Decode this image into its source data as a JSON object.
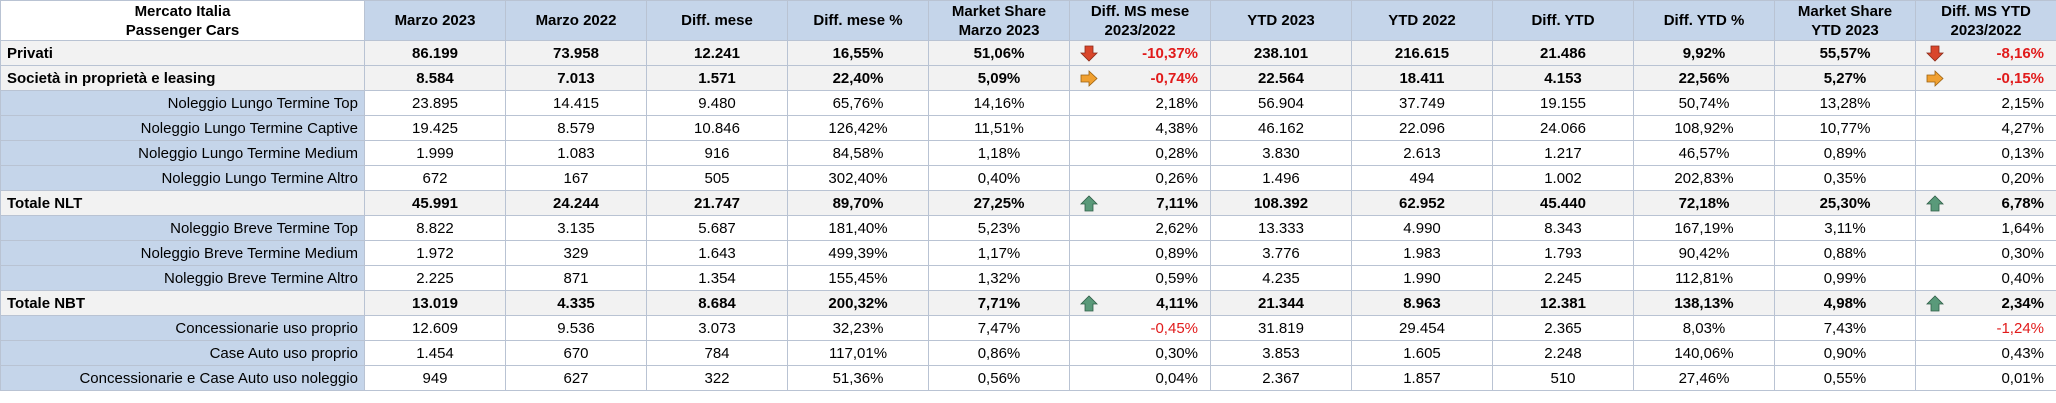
{
  "header": {
    "corner": [
      "Mercato Italia",
      "Passenger Cars"
    ],
    "columns": [
      [
        "Marzo 2023"
      ],
      [
        "Marzo 2022"
      ],
      [
        "Diff. mese"
      ],
      [
        "Diff. mese %"
      ],
      [
        "Market Share",
        "Marzo 2023"
      ],
      [
        "Diff. MS mese",
        "2023/2022"
      ],
      [
        "YTD 2023"
      ],
      [
        "YTD 2022"
      ],
      [
        "Diff. YTD"
      ],
      [
        "Diff. YTD %"
      ],
      [
        "Market Share",
        "YTD 2023"
      ],
      [
        "Diff. MS YTD",
        "2023/2022"
      ]
    ]
  },
  "colors": {
    "header_bg": "#c5d5ea",
    "negative": "#e11b1b",
    "arrow_down": "#d9462b",
    "arrow_right": "#f0a030",
    "arrow_up": "#5a9a7a"
  },
  "rows": [
    {
      "type": "bold",
      "label": "Privati",
      "values": [
        "86.199",
        "73.958",
        "12.241",
        "16,55%",
        "51,06%",
        "-10,37%",
        "238.101",
        "216.615",
        "21.486",
        "9,92%",
        "55,57%",
        "-8,16%"
      ],
      "arrow_ms": "arrow-down-icon",
      "arrow_ytd": "arrow-down-icon",
      "neg_ms": true,
      "neg_ytd": true
    },
    {
      "type": "bold",
      "label": "Società in proprietà e leasing",
      "values": [
        "8.584",
        "7.013",
        "1.571",
        "22,40%",
        "5,09%",
        "-0,74%",
        "22.564",
        "18.411",
        "4.153",
        "22,56%",
        "5,27%",
        "-0,15%"
      ],
      "arrow_ms": "arrow-right-icon",
      "arrow_ytd": "arrow-right-icon",
      "neg_ms": true,
      "neg_ytd": true
    },
    {
      "type": "sub",
      "label": "Noleggio Lungo Termine Top",
      "values": [
        "23.895",
        "14.415",
        "9.480",
        "65,76%",
        "14,16%",
        "2,18%",
        "56.904",
        "37.749",
        "19.155",
        "50,74%",
        "13,28%",
        "2,15%"
      ],
      "arrow_ms": "",
      "arrow_ytd": "",
      "neg_ms": false,
      "neg_ytd": false
    },
    {
      "type": "sub",
      "label": "Noleggio Lungo Termine Captive",
      "values": [
        "19.425",
        "8.579",
        "10.846",
        "126,42%",
        "11,51%",
        "4,38%",
        "46.162",
        "22.096",
        "24.066",
        "108,92%",
        "10,77%",
        "4,27%"
      ],
      "arrow_ms": "",
      "arrow_ytd": "",
      "neg_ms": false,
      "neg_ytd": false
    },
    {
      "type": "sub",
      "label": "Noleggio Lungo Termine Medium",
      "values": [
        "1.999",
        "1.083",
        "916",
        "84,58%",
        "1,18%",
        "0,28%",
        "3.830",
        "2.613",
        "1.217",
        "46,57%",
        "0,89%",
        "0,13%"
      ],
      "arrow_ms": "",
      "arrow_ytd": "",
      "neg_ms": false,
      "neg_ytd": false
    },
    {
      "type": "sub",
      "label": "Noleggio Lungo Termine Altro",
      "values": [
        "672",
        "167",
        "505",
        "302,40%",
        "0,40%",
        "0,26%",
        "1.496",
        "494",
        "1.002",
        "202,83%",
        "0,35%",
        "0,20%"
      ],
      "arrow_ms": "",
      "arrow_ytd": "",
      "neg_ms": false,
      "neg_ytd": false
    },
    {
      "type": "bold",
      "label": "Totale NLT",
      "values": [
        "45.991",
        "24.244",
        "21.747",
        "89,70%",
        "27,25%",
        "7,11%",
        "108.392",
        "62.952",
        "45.440",
        "72,18%",
        "25,30%",
        "6,78%"
      ],
      "arrow_ms": "arrow-up-icon",
      "arrow_ytd": "arrow-up-icon",
      "neg_ms": false,
      "neg_ytd": false
    },
    {
      "type": "sub",
      "label": "Noleggio Breve Termine Top",
      "values": [
        "8.822",
        "3.135",
        "5.687",
        "181,40%",
        "5,23%",
        "2,62%",
        "13.333",
        "4.990",
        "8.343",
        "167,19%",
        "3,11%",
        "1,64%"
      ],
      "arrow_ms": "",
      "arrow_ytd": "",
      "neg_ms": false,
      "neg_ytd": false
    },
    {
      "type": "sub",
      "label": "Noleggio Breve Termine Medium",
      "values": [
        "1.972",
        "329",
        "1.643",
        "499,39%",
        "1,17%",
        "0,89%",
        "3.776",
        "1.983",
        "1.793",
        "90,42%",
        "0,88%",
        "0,30%"
      ],
      "arrow_ms": "",
      "arrow_ytd": "",
      "neg_ms": false,
      "neg_ytd": false
    },
    {
      "type": "sub",
      "label": "Noleggio Breve Termine Altro",
      "values": [
        "2.225",
        "871",
        "1.354",
        "155,45%",
        "1,32%",
        "0,59%",
        "4.235",
        "1.990",
        "2.245",
        "112,81%",
        "0,99%",
        "0,40%"
      ],
      "arrow_ms": "",
      "arrow_ytd": "",
      "neg_ms": false,
      "neg_ytd": false
    },
    {
      "type": "bold",
      "label": "Totale NBT",
      "values": [
        "13.019",
        "4.335",
        "8.684",
        "200,32%",
        "7,71%",
        "4,11%",
        "21.344",
        "8.963",
        "12.381",
        "138,13%",
        "4,98%",
        "2,34%"
      ],
      "arrow_ms": "arrow-up-icon",
      "arrow_ytd": "arrow-up-icon",
      "neg_ms": false,
      "neg_ytd": false
    },
    {
      "type": "sub",
      "label": "Concessionarie uso proprio",
      "values": [
        "12.609",
        "9.536",
        "3.073",
        "32,23%",
        "7,47%",
        "-0,45%",
        "31.819",
        "29.454",
        "2.365",
        "8,03%",
        "7,43%",
        "-1,24%"
      ],
      "arrow_ms": "",
      "arrow_ytd": "",
      "neg_ms": true,
      "neg_ytd": true
    },
    {
      "type": "sub",
      "label": "Case Auto uso proprio",
      "values": [
        "1.454",
        "670",
        "784",
        "117,01%",
        "0,86%",
        "0,30%",
        "3.853",
        "1.605",
        "2.248",
        "140,06%",
        "0,90%",
        "0,43%"
      ],
      "arrow_ms": "",
      "arrow_ytd": "",
      "neg_ms": false,
      "neg_ytd": false
    },
    {
      "type": "sub",
      "label": "Concessionarie e Case Auto uso noleggio",
      "values": [
        "949",
        "627",
        "322",
        "51,36%",
        "0,56%",
        "0,04%",
        "2.367",
        "1.857",
        "510",
        "27,46%",
        "0,55%",
        "0,01%"
      ],
      "arrow_ms": "",
      "arrow_ytd": "",
      "neg_ms": false,
      "neg_ytd": false
    }
  ]
}
